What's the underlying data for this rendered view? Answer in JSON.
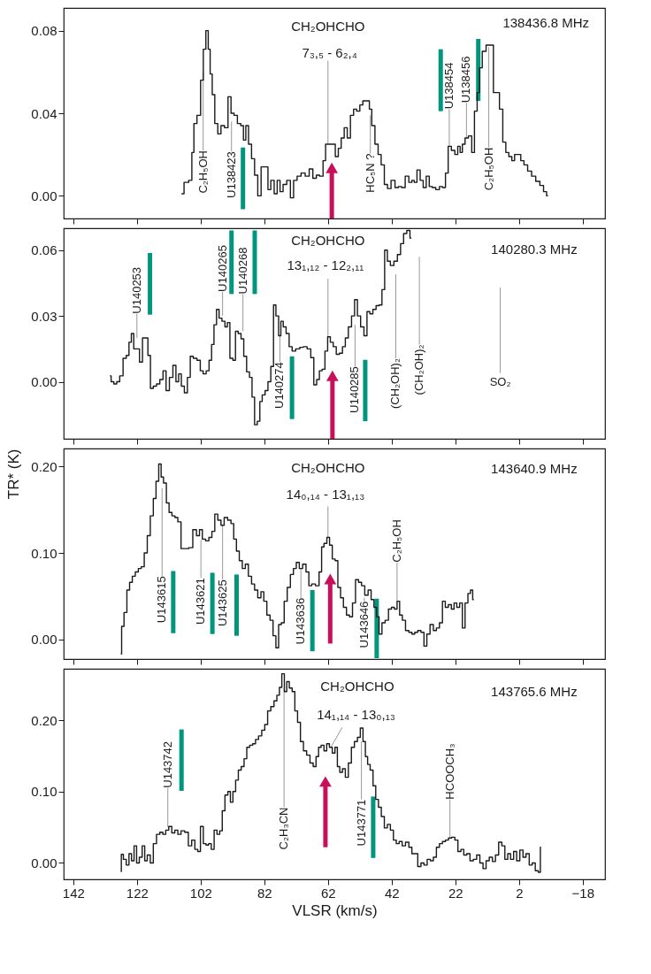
{
  "chart_data": [
    {
      "type": "step",
      "color": "#1a1a1a",
      "xlim": [
        145,
        -25
      ],
      "xticks": [
        142,
        122,
        102,
        82,
        62,
        42,
        22,
        2,
        -18
      ],
      "ylim": [
        -0.011,
        0.091
      ],
      "yticks": [
        {
          "value": 0,
          "label": "0.00"
        },
        0.04,
        0.08
      ],
      "tick_labels": "y",
      "x": [
        108.0,
        106.4,
        105.1,
        104.4,
        103.8,
        102.5,
        101.5,
        100.8,
        99.9,
        99.3,
        98.7,
        98.0,
        97.1,
        96.1,
        95.1,
        93.9,
        92.9,
        92.0,
        91.0,
        89.9,
        88.9,
        88.2,
        87.4,
        86.5,
        85.5,
        84.6,
        83.5,
        82.5,
        81.2,
        80.5,
        79.4,
        78.4,
        77.5,
        76.6,
        75.6,
        74.3,
        73.3,
        72.3,
        71.1,
        69.8,
        68.5,
        67.3,
        66.2,
        65.1,
        64.1,
        63.0,
        62.5,
        61.5,
        60.2,
        59.2,
        58.3,
        57.4,
        56.4,
        55.5,
        54.4,
        53.5,
        52.5,
        51.5,
        50.6,
        49.3,
        48.7,
        47.8,
        46.7,
        45.8,
        44.8,
        43.8,
        42.8,
        41.6,
        40.3,
        39.4,
        38.4,
        37.1,
        36.1,
        35.2,
        34.6,
        33.5,
        32.6,
        31.6,
        30.7,
        29.7,
        28.8,
        27.5,
        26.5,
        25.6,
        24.6,
        23.9,
        22.6,
        21.7,
        20.8,
        20.2,
        19.4,
        18.5,
        17.3,
        16.4,
        15.6,
        14.7,
        14.1,
        13.0,
        11.7,
        10.5,
        9.6,
        8.7,
        7.6,
        6.6,
        5.7,
        4.7,
        3.8,
        3.0,
        1.9,
        1.0,
        -0.1,
        -1.3,
        -2.6,
        -3.9,
        -5.2,
        -6.2,
        -7.1
      ],
      "values": [
        0.001,
        0.0065,
        0.0075,
        0.021,
        0.035,
        0.039,
        0.056,
        0.071,
        0.08,
        0.071,
        0.059,
        0.049,
        0.035,
        0.03,
        0.034,
        0.033,
        0.048,
        0.04,
        0.039,
        0.035,
        0.034,
        0.027,
        0.034,
        0.025,
        0.018,
        0.01,
        0.0,
        0.014,
        0.014,
        0.003,
        0.0075,
        0.001,
        0.0075,
        0.002,
        0.0055,
        0.0075,
        -0.001,
        0.0075,
        0.0095,
        0.011,
        0.0095,
        0.013,
        0.0085,
        0.01,
        0.0095,
        0.017,
        0.025,
        0.025,
        0.025,
        0.019,
        0.023,
        0.028,
        0.033,
        0.028,
        0.039,
        0.042,
        0.041,
        0.044,
        0.046,
        0.046,
        0.042,
        0.034,
        0.025,
        0.02,
        0.015,
        0.0055,
        0.0035,
        0.0075,
        0.004,
        0.0045,
        0.004,
        0.0095,
        0.0065,
        0.0075,
        0.0065,
        0.0125,
        0.0075,
        0.004,
        0.0095,
        0.0045,
        0.004,
        0.003,
        0.0045,
        0.004,
        0.011,
        0.024,
        0.022,
        0.02,
        0.024,
        0.021,
        0.025,
        0.028,
        0.029,
        0.021,
        0.041,
        0.05,
        0.062,
        0.07,
        0.073,
        0.073,
        0.05,
        0.05,
        0.042,
        0.026,
        0.021,
        0.019,
        0.017,
        0.02,
        0.02,
        0.017,
        0.015,
        0.012,
        0.0095,
        0.007,
        0.005,
        0.002,
        0.0
      ],
      "annotations": [
        "138436.8 MHz",
        "CH₂OHCHO",
        {
          "text": "7₃,₅ - 6₂,₄",
          "x": 62.0,
          "y": 0.025
        },
        {
          "text": "C₂H₅OH",
          "x": 101.2,
          "y": 0.06
        },
        {
          "text": "U138423",
          "x": 92.3,
          "y": 0.036
        },
        {
          "text": "HC₅N ?",
          "x": 48.7,
          "y": 0.039
        },
        {
          "text": "U138454",
          "x": 23.9,
          "y": 0.024
        },
        {
          "text": "U138456",
          "x": 18.5,
          "y": 0.028
        },
        {
          "text": "C₂H₅OH",
          "x": 11.5,
          "y": 0.072
        }
      ]
    },
    {
      "type": "step",
      "color": "#1a1a1a",
      "xlim": [
        145,
        -25
      ],
      "xticks": [
        142,
        122,
        102,
        82,
        62,
        42,
        22,
        2,
        -18
      ],
      "ylim": [
        -0.026,
        0.07
      ],
      "yticks": [
        {
          "value": 0,
          "label": "0.00"
        },
        0.03,
        0.06
      ],
      "tick_labels": "y",
      "x": [
        130.5,
        129.7,
        128.8,
        127.9,
        126.9,
        125.8,
        124.9,
        124.1,
        123.4,
        122.6,
        121.7,
        120.7,
        119.8,
        118.9,
        118.2,
        117.3,
        116.4,
        115.3,
        114.3,
        113.3,
        112.4,
        111.2,
        110.2,
        109.3,
        108.5,
        107.6,
        106.6,
        105.7,
        104.8,
        103.8,
        102.5,
        101.7,
        100.7,
        99.8,
        98.9,
        98.2,
        97.4,
        96.6,
        95.8,
        94.8,
        93.9,
        93.3,
        92.3,
        91.4,
        90.7,
        89.7,
        88.9,
        88.0,
        87.1,
        86.2,
        85.5,
        84.6,
        83.8,
        83.0,
        82.3,
        81.2,
        80.5,
        79.4,
        78.8,
        77.9,
        77.1,
        76.5,
        75.6,
        74.7,
        73.7,
        72.8,
        71.5,
        70.2,
        69.2,
        67.9,
        66.9,
        66.0,
        65.1,
        64.3,
        63.4,
        62.5,
        61.7,
        60.8,
        59.9,
        58.9,
        57.9,
        57.0,
        56.1,
        55.1,
        54.1,
        53.2,
        52.3,
        51.2,
        50.2,
        49.3,
        48.4,
        47.4,
        46.4,
        45.5,
        44.6,
        43.8,
        42.9,
        41.9,
        40.7,
        39.7,
        38.7,
        37.8,
        36.7,
        35.8
      ],
      "values": [
        0.0027,
        0.0,
        -0.001,
        0.0,
        0.0027,
        0.0107,
        0.012,
        0.018,
        0.022,
        0.015,
        0.015,
        0.009,
        0.02,
        0.02,
        0.012,
        -0.003,
        -0.002,
        -0.001,
        0.001,
        0.005,
        -0.004,
        0.002,
        0.0075,
        0.0,
        0.0036,
        -0.002,
        -0.005,
        0.002,
        0.0116,
        0.0107,
        0.0098,
        0.005,
        0.0036,
        0.005,
        0.0098,
        0.017,
        0.026,
        0.033,
        0.029,
        0.0276,
        0.025,
        0.027,
        0.0107,
        0.0098,
        0.023,
        0.022,
        0.0196,
        0.0116,
        0.0045,
        0.002,
        -0.007,
        -0.0196,
        -0.018,
        -0.009,
        -0.006,
        -0.004,
        0.0,
        0.007,
        0.035,
        0.03,
        0.021,
        0.0276,
        0.025,
        0.022,
        0.016,
        0.014,
        0.015,
        0.0157,
        0.016,
        0.015,
        0.011,
        -0.0014,
        0.001,
        0.005,
        0.0057,
        0.014,
        0.0205,
        0.018,
        0.016,
        0.0125,
        0.013,
        0.016,
        0.02,
        0.025,
        0.03,
        0.0374,
        0.03,
        0.025,
        0.021,
        0.032,
        0.031,
        0.033,
        0.0347,
        0.035,
        0.042,
        0.06,
        0.055,
        0.053,
        0.055,
        0.058,
        0.063,
        0.0676,
        0.069,
        0.0655
      ],
      "annotations": [
        "140280.3 MHz",
        "CH₂OHCHO",
        {
          "text": "13₁,₁₂ - 12₂,₁₁",
          "x": 62.0,
          "y": 0.02
        },
        {
          "text": "U140253",
          "x": 122.0,
          "y": 0.02
        },
        {
          "text": "U140265",
          "x": 95.1,
          "y": 0.03
        },
        {
          "text": "U140268",
          "x": 88.7,
          "y": 0.023
        },
        {
          "text": "U140274",
          "x": 77.1,
          "y": 0.021
        },
        {
          "text": "U140285",
          "x": 53.5,
          "y": 0.026
        },
        "(CH₂OH)₂",
        "(CH₂OH)₂",
        "SO₂"
      ]
    },
    {
      "type": "step",
      "color": "#1a1a1a",
      "xlim": [
        145,
        -25
      ],
      "xticks": [
        142,
        122,
        102,
        82,
        62,
        42,
        22,
        2,
        -18
      ],
      "ylim": [
        -0.023,
        0.221
      ],
      "yticks": [
        {
          "value": 0,
          "label": "0.00"
        },
        {
          "value": 0.1,
          "label": "0.10"
        },
        {
          "value": 0.2,
          "label": "0.20"
        }
      ],
      "tick_labels": "y",
      "ylabel": "TR* (K)",
      "x": [
        127.1,
        126.5,
        125.6,
        124.7,
        123.9,
        123.0,
        122.0,
        121.1,
        120.2,
        119.2,
        118.3,
        117.3,
        116.4,
        115.6,
        114.7,
        114.1,
        113.2,
        112.3,
        111.5,
        110.5,
        109.6,
        108.7,
        107.6,
        106.4,
        105.1,
        103.8,
        102.8,
        101.9,
        101.0,
        99.9,
        98.9,
        98.0,
        97.1,
        96.1,
        95.1,
        94.1,
        92.9,
        92.0,
        91.2,
        90.3,
        89.4,
        88.4,
        87.5,
        86.5,
        85.5,
        84.6,
        83.5,
        82.6,
        81.7,
        80.7,
        79.7,
        78.8,
        77.9,
        77.1,
        76.2,
        75.3,
        74.3,
        73.3,
        72.4,
        71.5,
        70.5,
        69.4,
        68.4,
        67.6,
        66.6,
        65.3,
        64.3,
        63.7,
        62.8,
        61.9,
        61.1,
        60.2,
        59.3,
        58.5,
        57.6,
        56.7,
        55.7,
        54.8,
        53.8,
        52.9,
        51.9,
        51.0,
        49.9,
        48.9,
        48.0,
        47.1,
        46.4,
        45.5,
        44.6,
        43.5,
        42.5,
        41.6,
        40.7,
        39.9,
        39.1,
        38.2,
        37.1,
        36.1,
        35.2,
        34.3,
        33.3,
        32.3,
        31.4,
        30.5,
        29.4,
        28.4,
        27.5,
        26.5,
        25.6,
        24.7,
        23.7,
        22.8,
        22.0,
        21.1,
        20.2,
        19.4,
        18.5,
        17.6,
        16.9,
        16.2
      ],
      "values": [
        -0.017,
        0.015,
        0.031,
        0.057,
        0.066,
        0.073,
        0.078,
        0.082,
        0.084,
        0.1,
        0.12,
        0.143,
        0.163,
        0.183,
        0.203,
        0.188,
        0.181,
        0.158,
        0.147,
        0.143,
        0.141,
        0.136,
        0.105,
        0.105,
        0.106,
        0.127,
        0.12,
        0.127,
        0.116,
        0.114,
        0.118,
        0.125,
        0.145,
        0.138,
        0.132,
        0.141,
        0.138,
        0.134,
        0.116,
        0.102,
        0.091,
        0.082,
        0.087,
        0.073,
        0.064,
        0.057,
        0.048,
        0.055,
        0.044,
        0.028,
        0.022,
        0.004,
        -0.01,
        0.017,
        0.019,
        0.044,
        0.06,
        0.075,
        0.082,
        0.089,
        0.082,
        0.087,
        0.078,
        0.062,
        0.064,
        0.062,
        0.078,
        0.107,
        0.111,
        0.118,
        0.109,
        0.093,
        0.091,
        0.06,
        0.048,
        0.037,
        0.028,
        0.026,
        0.042,
        0.069,
        0.066,
        0.062,
        0.051,
        0.057,
        0.046,
        0.037,
        0.026,
        0.006,
        0.019,
        0.022,
        0.035,
        0.037,
        0.035,
        0.044,
        0.028,
        0.022,
        0.01,
        0.008,
        0.006,
        0.008,
        0.01,
        0.008,
        -0.008,
        0.006,
        0.017,
        0.01,
        0.013,
        0.019,
        0.044,
        0.037,
        0.04,
        0.035,
        0.042,
        0.037,
        0.042,
        0.013,
        0.042,
        0.053,
        0.057,
        0.046
      ],
      "annotations": [
        "143640.9 MHz",
        "CH₂OHCHO",
        {
          "text": "14₀,₁₄ - 13₁,₁₃",
          "x": 62.0,
          "y": 0.118
        },
        {
          "text": "U143615",
          "x": 114.1,
          "y": 0.175
        },
        {
          "text": "U143621",
          "x": 101.9,
          "y": 0.115
        },
        {
          "text": "U143625",
          "x": 95.1,
          "y": 0.132
        },
        {
          "text": "U143636",
          "x": 70.5,
          "y": 0.082
        },
        {
          "text": "U143646",
          "x": 50.6,
          "y": 0.048
        },
        {
          "text": "C₂H₅OH",
          "x": 40.3,
          "y": 0.044
        }
      ]
    },
    {
      "type": "step",
      "color": "#1a1a1a",
      "xlim": [
        145,
        -25
      ],
      "xticks": [
        142,
        122,
        102,
        82,
        62,
        42,
        22,
        2,
        -18
      ],
      "ylim": [
        -0.023,
        0.272
      ],
      "yticks": [
        {
          "value": 0,
          "label": "0.00"
        },
        {
          "value": 0.1,
          "label": "0.10"
        },
        {
          "value": 0.2,
          "label": "0.20"
        }
      ],
      "xlabel": "VLSR (km/s)",
      "x": [
        127.1,
        126.7,
        125.8,
        124.9,
        124.1,
        123.3,
        122.5,
        121.7,
        120.8,
        119.9,
        119.2,
        118.3,
        117.3,
        116.4,
        115.3,
        114.3,
        113.4,
        112.5,
        111.5,
        110.6,
        109.6,
        108.7,
        107.6,
        106.4,
        105.3,
        104.3,
        103.3,
        102.5,
        101.6,
        100.7,
        99.9,
        99.1,
        98.2,
        97.3,
        96.4,
        95.6,
        94.8,
        93.9,
        93.0,
        92.3,
        91.4,
        90.6,
        89.7,
        88.8,
        87.9,
        87.1,
        86.1,
        85.2,
        84.3,
        83.3,
        82.3,
        81.4,
        80.5,
        79.4,
        78.5,
        77.6,
        76.9,
        76.1,
        75.3,
        74.6,
        73.7,
        72.8,
        72.0,
        71.1,
        70.2,
        69.2,
        68.2,
        67.1,
        66.2,
        65.3,
        64.6,
        63.7,
        62.8,
        62.0,
        61.1,
        60.2,
        59.4,
        58.7,
        57.9,
        57.0,
        56.1,
        55.1,
        54.2,
        53.2,
        52.3,
        51.4,
        50.6,
        49.9,
        49.2,
        48.3,
        47.4,
        46.6,
        45.7,
        44.8,
        43.8,
        42.9,
        41.9,
        41.0,
        40.1,
        39.2,
        38.2,
        37.1,
        36.1,
        35.2,
        34.3,
        33.3,
        32.3,
        31.4,
        30.3,
        29.4,
        28.4,
        27.5,
        26.5,
        25.6,
        24.6,
        23.7,
        22.6,
        21.7,
        20.7,
        19.8,
        18.9,
        17.9,
        16.9,
        15.8,
        14.8,
        13.8,
        12.8,
        11.9,
        10.8,
        9.9,
        8.9,
        7.9,
        6.9,
        6.0,
        5.1,
        4.2,
        3.2,
        2.3,
        1.2,
        0.3,
        -0.7,
        -1.7,
        -2.6,
        -3.6,
        -4.5,
        -4.9
      ],
      "values": [
        -0.012,
        0.012,
        0.005,
        -0.003,
        0.013,
        0.003,
        0.024,
        0.0,
        0.008,
        0.024,
        0.003,
        0.011,
        0.0,
        0.027,
        0.04,
        0.043,
        0.04,
        0.046,
        0.051,
        0.042,
        0.046,
        0.04,
        0.045,
        0.043,
        0.024,
        0.032,
        0.019,
        0.016,
        0.051,
        0.027,
        0.025,
        0.027,
        0.019,
        0.046,
        0.04,
        0.045,
        0.073,
        0.095,
        0.1,
        0.085,
        0.1,
        0.116,
        0.13,
        0.135,
        0.146,
        0.162,
        0.165,
        0.167,
        0.173,
        0.178,
        0.186,
        0.194,
        0.213,
        0.219,
        0.227,
        0.235,
        0.246,
        0.265,
        0.24,
        0.254,
        0.245,
        0.24,
        0.213,
        0.197,
        0.17,
        0.157,
        0.151,
        0.14,
        0.135,
        0.149,
        0.162,
        0.165,
        0.157,
        0.167,
        0.162,
        0.154,
        0.162,
        0.135,
        0.127,
        0.132,
        0.12,
        0.14,
        0.162,
        0.17,
        0.176,
        0.189,
        0.17,
        0.149,
        0.138,
        0.13,
        0.108,
        0.089,
        0.078,
        0.065,
        0.049,
        0.054,
        0.046,
        0.032,
        0.027,
        0.03,
        0.024,
        0.029,
        0.022,
        0.013,
        0.013,
        -0.005,
        0.0,
        -0.003,
        0.005,
        0.003,
        0.008,
        0.022,
        0.027,
        0.03,
        0.032,
        0.035,
        0.036,
        0.032,
        0.016,
        0.019,
        0.011,
        0.013,
        0.003,
        0.005,
        0.011,
        0.0,
        -0.008,
        0.003,
        0.008,
        0.002,
        0.011,
        0.029,
        0.024,
        0.005,
        0.013,
        0.005,
        0.016,
        0.003,
        0.018,
        0.008,
        0.013,
        -0.003,
        0.0,
        -0.011,
        -0.013,
        0.022
      ],
      "annotations": [
        "143765.6 MHz",
        "CH₂OHCHO",
        {
          "text": "14₁,₁₄ - 13₀,₁₃",
          "x": 61.1,
          "y": 0.162
        },
        {
          "text": "U143742",
          "x": 112.3,
          "y": 0.05
        },
        {
          "text": "C₂H₃CN",
          "x": 75.8,
          "y": 0.245
        },
        {
          "text": "U143771",
          "x": 51.5,
          "y": 0.17
        },
        {
          "text": "HCOOCH₃",
          "x": 23.7,
          "y": 0.036
        }
      ]
    }
  ]
}
